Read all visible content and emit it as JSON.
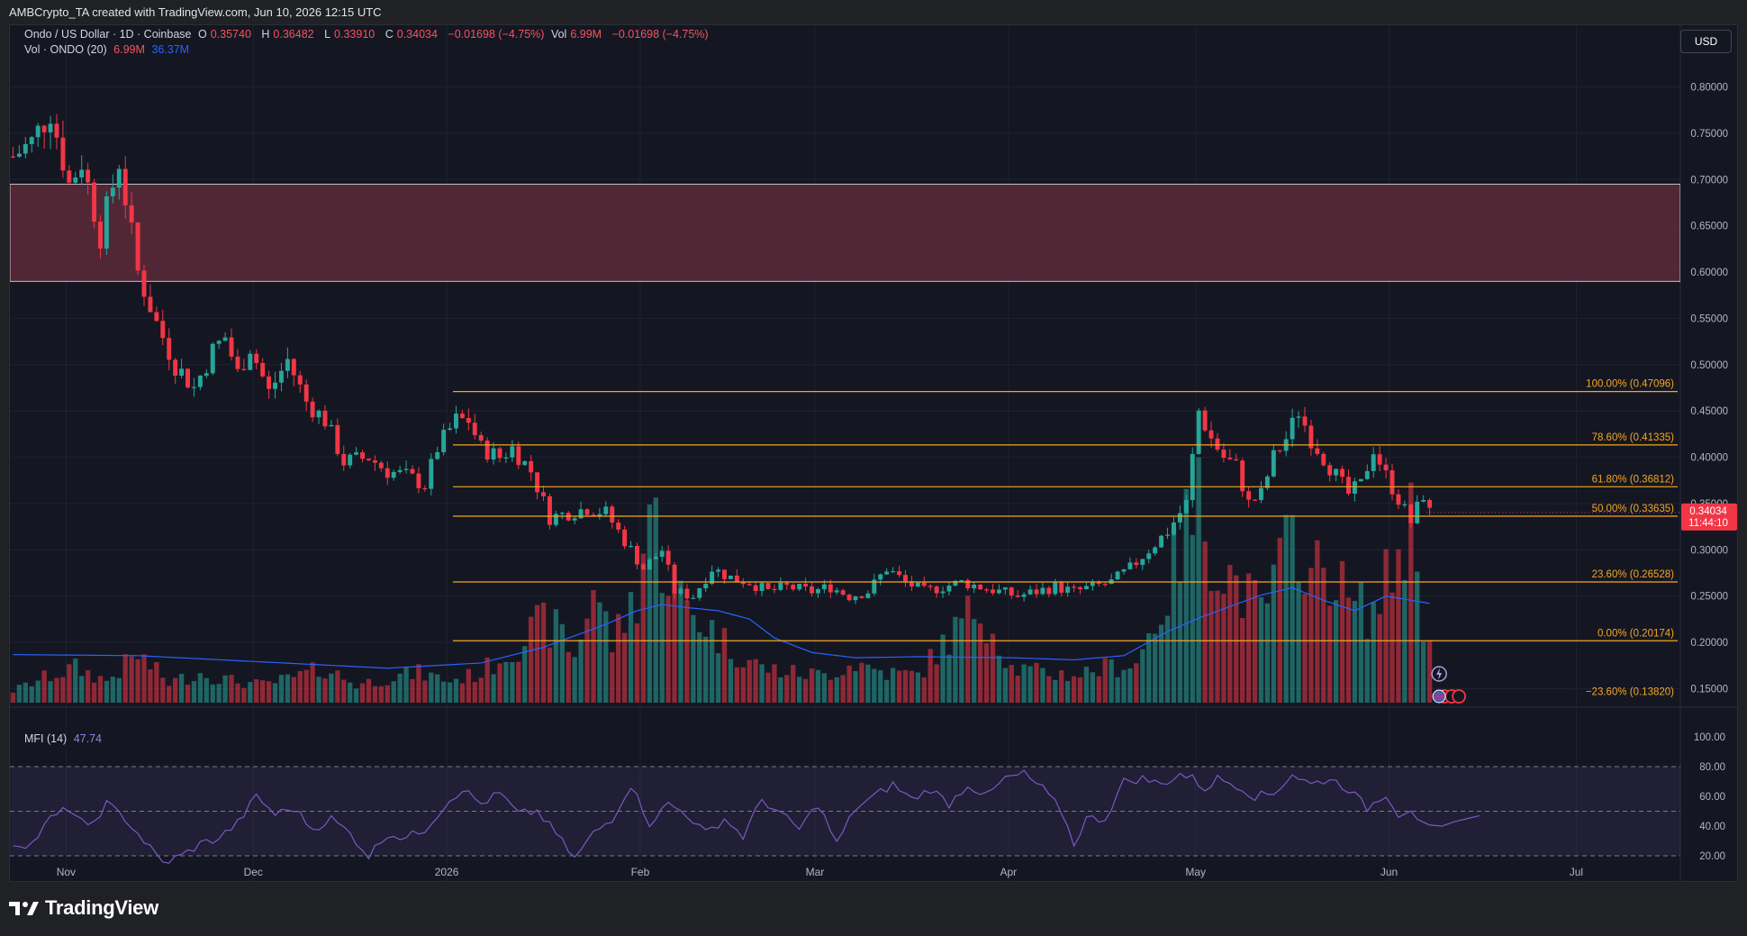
{
  "header": {
    "text": "AMBCrypto_TA created with TradingView.com, Jun 10, 2026 12:15 UTC"
  },
  "legend": {
    "symbol": "Ondo / US Dollar · 1D · Coinbase",
    "open_label": "O",
    "open": "0.35740",
    "high_label": "H",
    "high": "0.36482",
    "low_label": "L",
    "low": "0.33910",
    "close_label": "C",
    "close": "0.34034",
    "change": "−0.01698 (−4.75%)",
    "vol_label": "Vol",
    "vol": "6.99M",
    "vol_change": "−0.01698 (−4.75%)",
    "volume_indicator": "Vol · ONDO (20)",
    "volume_value": "6.99M",
    "volume_ma": "36.37M",
    "mfi_label": "MFI (14)",
    "mfi_value": "47.74"
  },
  "currency_button": "USD",
  "footer": {
    "brand": "TradingView"
  },
  "colors": {
    "up": "#26a69a",
    "down": "#f23645",
    "fib": "#f5a623",
    "zone": "#5c2a3a",
    "mfi": "#7e57c2",
    "volume_ma": "#2962ff",
    "background": "#141722"
  },
  "chart_data": {
    "type": "candlestick",
    "symbol": "ONDO/USD",
    "timeframe": "1D",
    "ylim": [
      0.13,
      0.82
    ],
    "y_ticks": [
      "0.80000",
      "0.75000",
      "0.70000",
      "0.65000",
      "0.60000",
      "0.55000",
      "0.50000",
      "0.45000",
      "0.40000",
      "0.35000",
      "0.30000",
      "0.25000",
      "0.20000",
      "0.15000"
    ],
    "x_ticks": [
      "Nov",
      "Dec",
      "2026",
      "Feb",
      "Mar",
      "Apr",
      "May",
      "Jun",
      "Jul"
    ],
    "x_tick_days": [
      9,
      39,
      70,
      101,
      129,
      160,
      190,
      221,
      251
    ],
    "last_price": "0.34034",
    "countdown": "11:44:10",
    "resistance_zone": [
      0.59,
      0.695
    ],
    "fibonacci": {
      "start_day": 71,
      "levels": [
        {
          "label": "100.00% (0.47096)",
          "value": 0.47096
        },
        {
          "label": "78.60% (0.41335)",
          "value": 0.41335
        },
        {
          "label": "61.80% (0.36812)",
          "value": 0.36812
        },
        {
          "label": "50.00% (0.33635)",
          "value": 0.33635
        },
        {
          "label": "23.60% (0.26528)",
          "value": 0.26528
        },
        {
          "label": "0.00% (0.20174)",
          "value": 0.20174
        },
        {
          "label": "−23.60% (0.13820)",
          "value": 0.1382
        }
      ]
    },
    "close_anchors": [
      [
        0,
        0.725
      ],
      [
        3,
        0.74
      ],
      [
        6,
        0.775
      ],
      [
        9,
        0.695
      ],
      [
        11,
        0.72
      ],
      [
        14,
        0.64
      ],
      [
        17,
        0.72
      ],
      [
        20,
        0.6
      ],
      [
        23,
        0.545
      ],
      [
        26,
        0.5
      ],
      [
        29,
        0.475
      ],
      [
        32,
        0.515
      ],
      [
        34,
        0.53
      ],
      [
        36,
        0.49
      ],
      [
        38,
        0.52
      ],
      [
        41,
        0.47
      ],
      [
        44,
        0.505
      ],
      [
        47,
        0.46
      ],
      [
        50,
        0.44
      ],
      [
        53,
        0.395
      ],
      [
        57,
        0.4
      ],
      [
        60,
        0.385
      ],
      [
        63,
        0.38
      ],
      [
        66,
        0.37
      ],
      [
        68,
        0.41
      ],
      [
        71,
        0.44
      ],
      [
        73,
        0.44
      ],
      [
        75,
        0.41
      ],
      [
        78,
        0.4
      ],
      [
        80,
        0.41
      ],
      [
        83,
        0.385
      ],
      [
        86,
        0.335
      ],
      [
        89,
        0.34
      ],
      [
        92,
        0.345
      ],
      [
        95,
        0.34
      ],
      [
        98,
        0.31
      ],
      [
        101,
        0.28
      ],
      [
        104,
        0.3
      ],
      [
        106,
        0.255
      ],
      [
        109,
        0.25
      ],
      [
        112,
        0.28
      ],
      [
        115,
        0.27
      ],
      [
        118,
        0.265
      ],
      [
        121,
        0.255
      ],
      [
        124,
        0.26
      ],
      [
        128,
        0.255
      ],
      [
        131,
        0.26
      ],
      [
        134,
        0.25
      ],
      [
        137,
        0.255
      ],
      [
        140,
        0.28
      ],
      [
        143,
        0.265
      ],
      [
        146,
        0.255
      ],
      [
        149,
        0.26
      ],
      [
        152,
        0.265
      ],
      [
        155,
        0.26
      ],
      [
        158,
        0.255
      ],
      [
        161,
        0.25
      ],
      [
        164,
        0.255
      ],
      [
        167,
        0.26
      ],
      [
        170,
        0.255
      ],
      [
        173,
        0.26
      ],
      [
        176,
        0.265
      ],
      [
        179,
        0.28
      ],
      [
        182,
        0.3
      ],
      [
        185,
        0.32
      ],
      [
        188,
        0.35
      ],
      [
        190,
        0.45
      ],
      [
        192,
        0.42
      ],
      [
        194,
        0.4
      ],
      [
        196,
        0.39
      ],
      [
        198,
        0.35
      ],
      [
        200,
        0.36
      ],
      [
        202,
        0.4
      ],
      [
        204,
        0.42
      ],
      [
        206,
        0.45
      ],
      [
        208,
        0.42
      ],
      [
        210,
        0.4
      ],
      [
        212,
        0.38
      ],
      [
        214,
        0.36
      ],
      [
        216,
        0.37
      ],
      [
        218,
        0.41
      ],
      [
        220,
        0.38
      ],
      [
        222,
        0.355
      ],
      [
        224,
        0.33
      ],
      [
        226,
        0.36
      ],
      [
        227,
        0.34
      ]
    ],
    "volume_ylim": [
      0,
      200
    ],
    "volume_anchors": [
      [
        0,
        12
      ],
      [
        5,
        25
      ],
      [
        10,
        35
      ],
      [
        15,
        22
      ],
      [
        20,
        48
      ],
      [
        25,
        20
      ],
      [
        30,
        30
      ],
      [
        35,
        22
      ],
      [
        40,
        18
      ],
      [
        45,
        25
      ],
      [
        50,
        35
      ],
      [
        55,
        18
      ],
      [
        60,
        25
      ],
      [
        65,
        30
      ],
      [
        70,
        22
      ],
      [
        75,
        30
      ],
      [
        80,
        55
      ],
      [
        85,
        80
      ],
      [
        88,
        70
      ],
      [
        90,
        45
      ],
      [
        93,
        120
      ],
      [
        96,
        60
      ],
      [
        100,
        110
      ],
      [
        102,
        200
      ],
      [
        104,
        150
      ],
      [
        106,
        110
      ],
      [
        110,
        85
      ],
      [
        115,
        55
      ],
      [
        120,
        35
      ],
      [
        125,
        30
      ],
      [
        130,
        28
      ],
      [
        135,
        40
      ],
      [
        140,
        30
      ],
      [
        145,
        28
      ],
      [
        150,
        65
      ],
      [
        155,
        100
      ],
      [
        160,
        35
      ],
      [
        165,
        30
      ],
      [
        170,
        28
      ],
      [
        175,
        35
      ],
      [
        180,
        40
      ],
      [
        185,
        110
      ],
      [
        187,
        160
      ],
      [
        190,
        200
      ],
      [
        193,
        145
      ],
      [
        196,
        120
      ],
      [
        200,
        90
      ],
      [
        203,
        135
      ],
      [
        206,
        175
      ],
      [
        208,
        125
      ],
      [
        211,
        140
      ],
      [
        214,
        100
      ],
      [
        218,
        90
      ],
      [
        222,
        150
      ],
      [
        224,
        185
      ],
      [
        226,
        85
      ],
      [
        227,
        80
      ]
    ],
    "volume_ma_anchors": [
      [
        0,
        46
      ],
      [
        20,
        45
      ],
      [
        40,
        39
      ],
      [
        60,
        33
      ],
      [
        75,
        38
      ],
      [
        85,
        53
      ],
      [
        95,
        75
      ],
      [
        100,
        88
      ],
      [
        104,
        94
      ],
      [
        108,
        91
      ],
      [
        113,
        88
      ],
      [
        118,
        80
      ],
      [
        122,
        62
      ],
      [
        128,
        48
      ],
      [
        135,
        43
      ],
      [
        145,
        44
      ],
      [
        160,
        43
      ],
      [
        170,
        41
      ],
      [
        178,
        45
      ],
      [
        185,
        68
      ],
      [
        190,
        81
      ],
      [
        195,
        92
      ],
      [
        200,
        103
      ],
      [
        205,
        110
      ],
      [
        210,
        98
      ],
      [
        215,
        88
      ],
      [
        220,
        102
      ],
      [
        224,
        98
      ],
      [
        227,
        95
      ]
    ],
    "mfi_ylim": [
      0,
      100
    ],
    "mfi_levels": [
      20,
      50,
      80
    ],
    "mfi_ticks": [
      "100.00",
      "80.00",
      "60.00",
      "40.00",
      "20.00"
    ],
    "mfi_anchors": [
      [
        0,
        28
      ],
      [
        3,
        28
      ],
      [
        6,
        45
      ],
      [
        9,
        52
      ],
      [
        12,
        38
      ],
      [
        15,
        55
      ],
      [
        18,
        45
      ],
      [
        21,
        30
      ],
      [
        24,
        15
      ],
      [
        27,
        20
      ],
      [
        30,
        28
      ],
      [
        33,
        32
      ],
      [
        36,
        42
      ],
      [
        39,
        60
      ],
      [
        42,
        48
      ],
      [
        45,
        52
      ],
      [
        48,
        38
      ],
      [
        51,
        45
      ],
      [
        54,
        35
      ],
      [
        57,
        20
      ],
      [
        60,
        35
      ],
      [
        63,
        32
      ],
      [
        66,
        38
      ],
      [
        70,
        58
      ],
      [
        72,
        65
      ],
      [
        75,
        55
      ],
      [
        78,
        62
      ],
      [
        81,
        48
      ],
      [
        84,
        50
      ],
      [
        87,
        35
      ],
      [
        90,
        18
      ],
      [
        93,
        35
      ],
      [
        96,
        45
      ],
      [
        99,
        68
      ],
      [
        102,
        42
      ],
      [
        105,
        55
      ],
      [
        108,
        48
      ],
      [
        111,
        35
      ],
      [
        114,
        45
      ],
      [
        117,
        33
      ],
      [
        120,
        58
      ],
      [
        123,
        48
      ],
      [
        126,
        38
      ],
      [
        129,
        55
      ],
      [
        132,
        28
      ],
      [
        135,
        52
      ],
      [
        138,
        60
      ],
      [
        141,
        68
      ],
      [
        144,
        58
      ],
      [
        147,
        65
      ],
      [
        150,
        55
      ],
      [
        153,
        68
      ],
      [
        156,
        60
      ],
      [
        159,
        72
      ],
      [
        162,
        75
      ],
      [
        165,
        65
      ],
      [
        168,
        50
      ],
      [
        170,
        28
      ],
      [
        172,
        45
      ],
      [
        175,
        45
      ],
      [
        178,
        70
      ],
      [
        181,
        72
      ],
      [
        184,
        68
      ],
      [
        187,
        75
      ],
      [
        189,
        72
      ],
      [
        191,
        65
      ],
      [
        193,
        72
      ],
      [
        196,
        68
      ],
      [
        199,
        60
      ],
      [
        202,
        62
      ],
      [
        205,
        75
      ],
      [
        208,
        68
      ],
      [
        211,
        72
      ],
      [
        214,
        65
      ],
      [
        217,
        52
      ],
      [
        220,
        62
      ],
      [
        222,
        48
      ],
      [
        224,
        52
      ],
      [
        226,
        40
      ],
      [
        227,
        38
      ]
    ],
    "mfi_tail": [
      [
        227,
        38
      ],
      [
        229,
        40
      ],
      [
        231,
        43
      ],
      [
        233,
        45
      ],
      [
        235,
        47
      ]
    ],
    "n_days": 236,
    "projection_day_end": 284
  }
}
